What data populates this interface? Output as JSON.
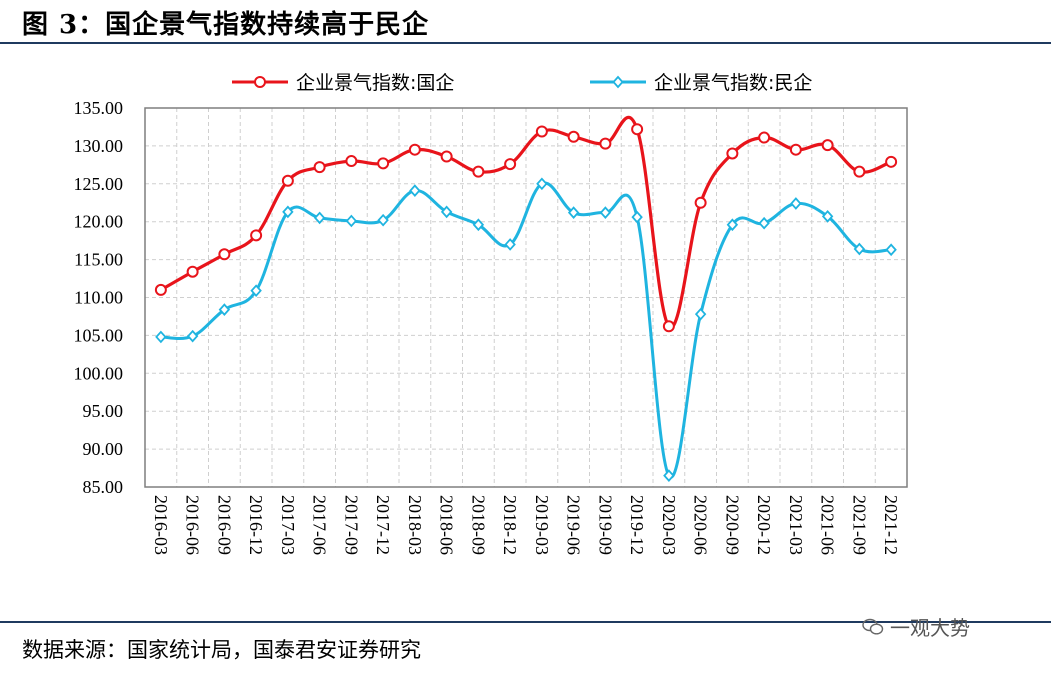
{
  "figure": {
    "title": "图 3：国企景气指数持续高于民企",
    "source": "数据来源：国家统计局，国泰君安证券研究",
    "watermark": "一观大势"
  },
  "colors": {
    "state": "#e8141b",
    "private": "#1fb4e0",
    "rule": "#1f3a5f",
    "grid": "#cfcfcf"
  },
  "chart_data": {
    "type": "line",
    "title": "",
    "xlabel": "",
    "ylabel": "",
    "ylim": [
      85,
      135
    ],
    "yticks": [
      "85.00",
      "90.00",
      "95.00",
      "100.00",
      "105.00",
      "110.00",
      "115.00",
      "120.00",
      "125.00",
      "130.00",
      "135.00"
    ],
    "categories": [
      "2016-03",
      "2016-06",
      "2016-09",
      "2016-12",
      "2017-03",
      "2017-06",
      "2017-09",
      "2017-12",
      "2018-03",
      "2018-06",
      "2018-09",
      "2018-12",
      "2019-03",
      "2019-06",
      "2019-09",
      "2019-12",
      "2020-03",
      "2020-06",
      "2020-09",
      "2020-12",
      "2021-03",
      "2021-06",
      "2021-09",
      "2021-12"
    ],
    "grid": "both",
    "legend_position": "top",
    "series": [
      {
        "name": "企业景气指数:国企",
        "marker": "circle",
        "values": [
          111.0,
          113.4,
          115.7,
          118.2,
          125.4,
          127.2,
          128.0,
          127.7,
          129.5,
          128.6,
          126.6,
          127.6,
          131.9,
          131.2,
          130.3,
          132.2,
          106.2,
          122.5,
          129.0,
          131.1,
          129.5,
          130.1,
          126.6,
          127.9
        ]
      },
      {
        "name": "企业景气指数:民企",
        "marker": "diamond",
        "values": [
          104.8,
          104.9,
          108.4,
          110.9,
          121.3,
          120.5,
          120.1,
          120.2,
          124.1,
          121.3,
          119.6,
          117.0,
          125.0,
          121.2,
          121.2,
          120.6,
          86.5,
          107.8,
          119.6,
          119.8,
          122.4,
          120.7,
          116.4,
          116.3
        ]
      }
    ]
  }
}
